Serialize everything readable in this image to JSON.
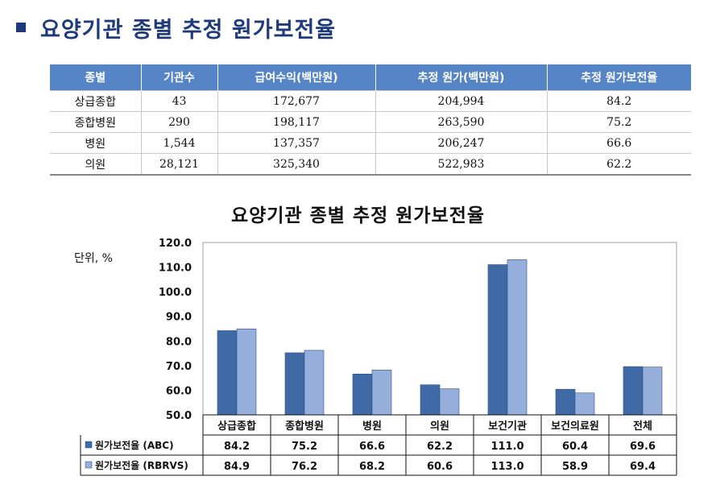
{
  "header": {
    "title": "요양기관 종별 추정 원가보전율"
  },
  "table": {
    "headers": [
      "종별",
      "기관수",
      "급여수익(백만원)",
      "추정 원가(백만원)",
      "추정 원가보전율"
    ],
    "rows": [
      [
        "상급종합",
        "43",
        "172,677",
        "204,994",
        "84.2"
      ],
      [
        "종합병원",
        "290",
        "198,117",
        "263,590",
        "75.2"
      ],
      [
        "병원",
        "1,544",
        "137,357",
        "206,247",
        "66.6"
      ],
      [
        "의원",
        "28,121",
        "325,340",
        "522,983",
        "62.2"
      ]
    ]
  },
  "chart_data": {
    "type": "bar",
    "title": "요양기관 종별 추정 원가보전율",
    "unit_label": "단위, %",
    "categories": [
      "상급종합",
      "종합병원",
      "병원",
      "의원",
      "보건기관",
      "보건의료원",
      "전체"
    ],
    "series": [
      {
        "name": "원가보전율 (ABC)",
        "values": [
          84.2,
          75.2,
          66.6,
          62.2,
          111.0,
          60.4,
          69.6
        ],
        "color": "#3f6aa6"
      },
      {
        "name": "원가보전율 (RBRVS)",
        "values": [
          84.9,
          76.2,
          68.2,
          60.6,
          113.0,
          58.9,
          69.4
        ],
        "color": "#95aedb"
      }
    ],
    "value_labels": [
      [
        "84.2",
        "75.2",
        "66.6",
        "62.2",
        "111.0",
        "60.4",
        "69.6"
      ],
      [
        "84.9",
        "76.2",
        "68.2",
        "60.6",
        "113.0",
        "58.9",
        "69.4"
      ]
    ],
    "ylim": [
      50,
      120
    ],
    "yticks": [
      "50.0",
      "60.0",
      "70.0",
      "80.0",
      "90.0",
      "100.0",
      "110.0",
      "120.0"
    ],
    "grid": false,
    "legend": "data-table-bottom"
  }
}
